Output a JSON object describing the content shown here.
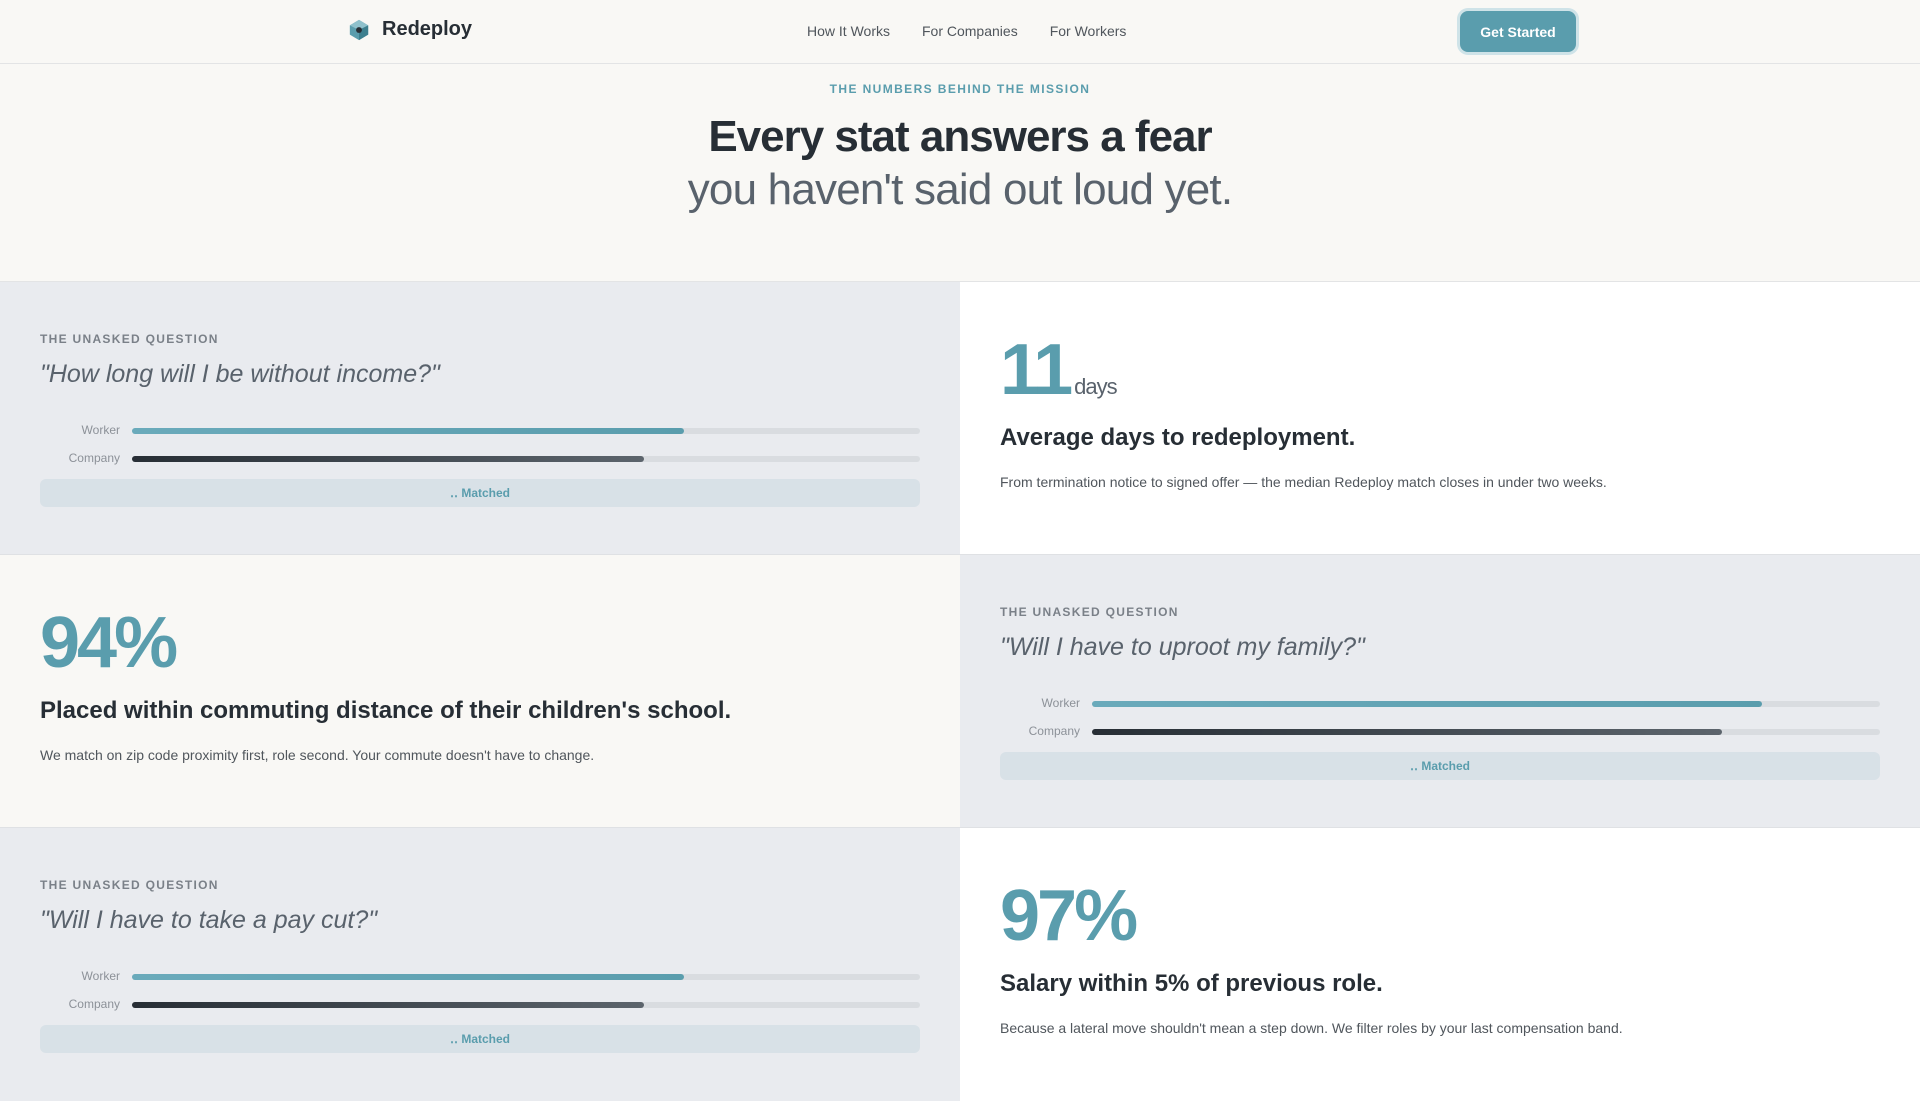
{
  "nav": {
    "brand": "Redeploy",
    "links": [
      "How It Works",
      "For Companies",
      "For Workers"
    ],
    "cta": "Get Started"
  },
  "hero": {
    "eyebrow": "THE NUMBERS BEHIND THE MISSION",
    "title": "Every stat answers a fear",
    "subtitle": "you haven't said out loud yet."
  },
  "questions": [
    {
      "label": "THE UNASKED QUESTION",
      "text": "\"How long will I be without income?\"",
      "worker_label": "Worker",
      "company_label": "Company",
      "worker_progress": 0.7,
      "company_progress": 0.65,
      "matched": "‥ Matched"
    },
    {
      "label": "THE UNASKED QUESTION",
      "text": "\"Will I have to uproot my family?\"",
      "worker_label": "Worker",
      "company_label": "Company",
      "worker_progress": 0.85,
      "company_progress": 0.8,
      "matched": "‥ Matched"
    },
    {
      "label": "THE UNASKED QUESTION",
      "text": "\"Will I have to take a pay cut?\"",
      "worker_label": "Worker",
      "company_label": "Company",
      "worker_progress": 0.7,
      "company_progress": 0.65,
      "matched": "‥ Matched"
    }
  ],
  "stats": [
    {
      "value": "11",
      "unit": "days",
      "heading": "Average days to redeployment.",
      "body": "From termination notice to signed offer — the median Redeploy match closes in under two weeks."
    },
    {
      "value": "94%",
      "unit": "",
      "heading": "Placed within commuting distance of their children's school.",
      "body": "We match on zip code proximity first, role second. Your commute doesn't have to change."
    },
    {
      "value": "97%",
      "unit": "",
      "heading": "Salary within 5% of previous role.",
      "body": "Because a lateral move shouldn't mean a step down. We filter roles by your last compensation band."
    }
  ],
  "colors": {
    "accent": "#5a9dad",
    "text": "#272e35",
    "question_bg": "#e9ebef"
  }
}
